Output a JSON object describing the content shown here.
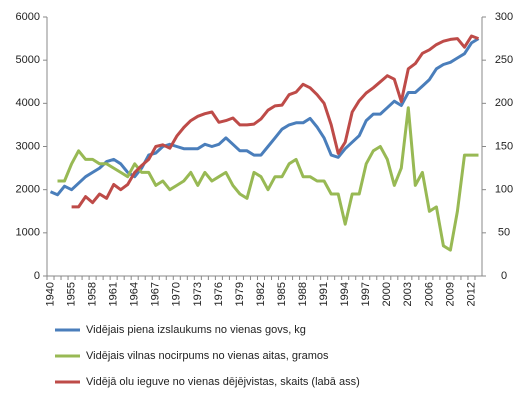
{
  "chart_data": {
    "type": "line",
    "categories": [
      1940,
      null,
      null,
      1955,
      null,
      null,
      1958,
      null,
      null,
      1961,
      null,
      null,
      1964,
      null,
      null,
      1967,
      null,
      null,
      1970,
      null,
      null,
      1973,
      null,
      null,
      1976,
      null,
      null,
      1979,
      null,
      null,
      1982,
      null,
      null,
      1985,
      null,
      null,
      1988,
      null,
      null,
      1991,
      null,
      null,
      1994,
      null,
      null,
      1997,
      null,
      null,
      2000,
      null,
      null,
      2003,
      null,
      null,
      2006,
      null,
      null,
      2009,
      null,
      null,
      2012,
      null
    ],
    "series": [
      {
        "name": "Vidējais piena izslaukums no vienas govs, kg",
        "color": "#4a7ebb",
        "values": [
          1950,
          1880,
          2080,
          2000,
          2150,
          2300,
          2400,
          2500,
          2650,
          2700,
          2600,
          2400,
          2300,
          2500,
          2800,
          2850,
          3000,
          3050,
          3000,
          2950,
          2950,
          2950,
          3050,
          3000,
          3050,
          3200,
          3050,
          2900,
          2900,
          2800,
          2800,
          3000,
          3200,
          3400,
          3500,
          3550,
          3550,
          3650,
          3450,
          3200,
          2800,
          2750,
          2950,
          3100,
          3250,
          3600,
          3750,
          3750,
          3900,
          4050,
          3950,
          4250,
          4250,
          4400,
          4550,
          4800,
          4900,
          4950,
          5050,
          5150,
          5400,
          5500
        ]
      },
      {
        "name": "Vidējais vilnas nocirpums no vienas aitas, gramos",
        "color": "#98b954",
        "values": [
          null,
          2200,
          2200,
          2600,
          2900,
          2700,
          2700,
          2600,
          2600,
          2500,
          2400,
          2300,
          2600,
          2400,
          2400,
          2100,
          2200,
          2000,
          2100,
          2200,
          2400,
          2100,
          2400,
          2200,
          2300,
          2400,
          2100,
          1900,
          1800,
          2400,
          2300,
          2000,
          2300,
          2300,
          2600,
          2700,
          2300,
          2300,
          2200,
          2200,
          1900,
          1900,
          1200,
          1900,
          1900,
          2600,
          2900,
          3000,
          2700,
          2100,
          2500,
          3900,
          2100,
          2400,
          1500,
          1600,
          700,
          600,
          1500,
          2800,
          2800,
          2800
        ]
      },
      {
        "name": "Vidējā olu ieguve no vienas dējējvistas, skaits (labā ass)",
        "color": "#be4b48",
        "axis": "y2",
        "values": [
          null,
          null,
          null,
          80,
          80,
          92,
          85,
          95,
          90,
          106,
          100,
          106,
          120,
          128,
          135,
          150,
          152,
          148,
          162,
          172,
          180,
          185,
          188,
          190,
          178,
          180,
          183,
          175,
          175,
          176,
          182,
          192,
          197,
          198,
          210,
          213,
          222,
          218,
          210,
          200,
          175,
          142,
          155,
          190,
          203,
          212,
          218,
          225,
          232,
          228,
          202,
          240,
          246,
          258,
          262,
          268,
          272,
          274,
          275,
          265,
          278,
          275
        ]
      }
    ],
    "ylim": [
      0,
      6000
    ],
    "yticks": [
      0,
      1000,
      2000,
      3000,
      4000,
      5000,
      6000
    ],
    "y2lim": [
      0,
      300
    ],
    "y2ticks": [
      0,
      50,
      100,
      150,
      200,
      250,
      300
    ],
    "grid": false
  }
}
